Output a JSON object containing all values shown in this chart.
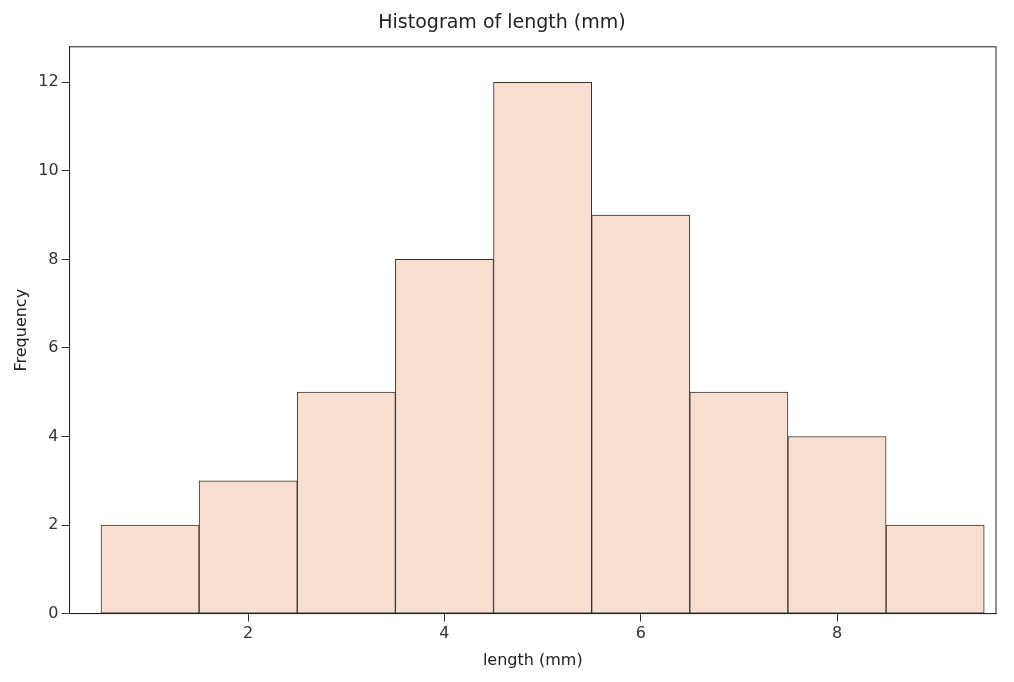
{
  "chart_data": {
    "type": "histogram",
    "title": "Histogram of length (mm)",
    "xlabel": "length (mm)",
    "ylabel": "Frequency",
    "bins": [
      0.5,
      1.5,
      2.5,
      3.5,
      4.5,
      5.5,
      6.5,
      7.5,
      8.5,
      9.5
    ],
    "values": [
      2,
      3,
      5,
      8,
      12,
      9,
      5,
      4,
      2
    ],
    "color": "#f8dfcf",
    "xlim": [
      0.18,
      9.62
    ],
    "xticks": [
      2,
      4,
      6,
      8
    ],
    "ylim": [
      0,
      12.8
    ],
    "yticks": [
      0,
      2,
      4,
      6,
      8,
      10,
      12
    ],
    "grid": false,
    "legend": false
  }
}
